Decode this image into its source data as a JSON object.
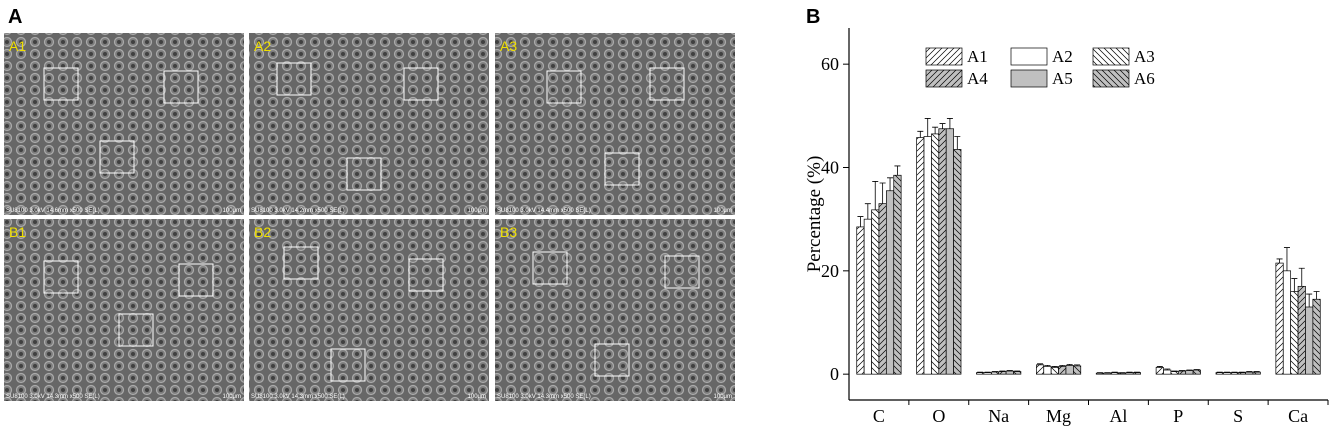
{
  "panel_a": {
    "label": "A",
    "images": [
      {
        "label": "A1",
        "caption": "SU8100 3.0kV 14.6mm x500 SE(L)",
        "scale": "100μm"
      },
      {
        "label": "A2",
        "caption": "SU8100 3.0kV 14.2mm x500 SE(L)",
        "scale": "100μm"
      },
      {
        "label": "A3",
        "caption": "SU8100 3.0kV 14.4mm x500 SE(L)",
        "scale": "100μm"
      },
      {
        "label": "B1",
        "caption": "SU8100 3.0kV 14.3mm x500 SE(L)",
        "scale": "100μm"
      },
      {
        "label": "B2",
        "caption": "SU8100 3.0kV 14.3mm x500 SE(L)",
        "scale": "100μm"
      },
      {
        "label": "B3",
        "caption": "SU8100 3.0kV 14.3mm x500 SE(L)",
        "scale": "100μm"
      }
    ]
  },
  "chart_data": {
    "type": "bar",
    "label": "B",
    "y_label": "Percentage (%)",
    "categories": [
      "C",
      "O",
      "Na",
      "Mg",
      "Al",
      "P",
      "S",
      "Ca"
    ],
    "ylim": [
      -5,
      67
    ],
    "yticks": [
      0,
      20,
      40,
      60
    ],
    "series": [
      {
        "name": "A1",
        "color": "#ffffff",
        "hatch": "forward",
        "values": [
          28.5,
          45.8,
          0.3,
          1.8,
          0.2,
          1.3,
          0.3,
          21.5
        ],
        "errors": [
          2,
          1.2,
          0.1,
          0.2,
          0.1,
          0.2,
          0.1,
          0.8
        ]
      },
      {
        "name": "A2",
        "color": "#ffffff",
        "hatch": "none",
        "values": [
          30,
          46,
          0.3,
          1.5,
          0.2,
          0.8,
          0.3,
          20
        ],
        "errors": [
          3,
          3.5,
          0.1,
          0.2,
          0.1,
          0.2,
          0.1,
          4.5
        ]
      },
      {
        "name": "A3",
        "color": "#ffffff",
        "hatch": "backward",
        "values": [
          31.8,
          46.5,
          0.4,
          1.3,
          0.3,
          0.5,
          0.3,
          16
        ],
        "errors": [
          5.5,
          1.3,
          0.1,
          0.2,
          0.1,
          0.1,
          0.1,
          2.5
        ]
      },
      {
        "name": "A4",
        "color": "#c0c0c0",
        "hatch": "forward",
        "values": [
          33,
          47.5,
          0.5,
          1.5,
          0.2,
          0.6,
          0.3,
          17
        ],
        "errors": [
          4,
          1,
          0.1,
          0.2,
          0.1,
          0.1,
          0.1,
          3.5
        ]
      },
      {
        "name": "A5",
        "color": "#c0c0c0",
        "hatch": "none",
        "values": [
          35.5,
          47.5,
          0.6,
          1.7,
          0.3,
          0.7,
          0.4,
          13
        ],
        "errors": [
          2.5,
          2,
          0.1,
          0.2,
          0.1,
          0.1,
          0.1,
          2.5
        ]
      },
      {
        "name": "A6",
        "color": "#c0c0c0",
        "hatch": "backward",
        "values": [
          38.5,
          43.5,
          0.5,
          1.6,
          0.3,
          0.8,
          0.4,
          14.5
        ],
        "errors": [
          1.8,
          2.5,
          0.1,
          0.2,
          0.1,
          0.1,
          0.1,
          1.5
        ]
      }
    ]
  }
}
